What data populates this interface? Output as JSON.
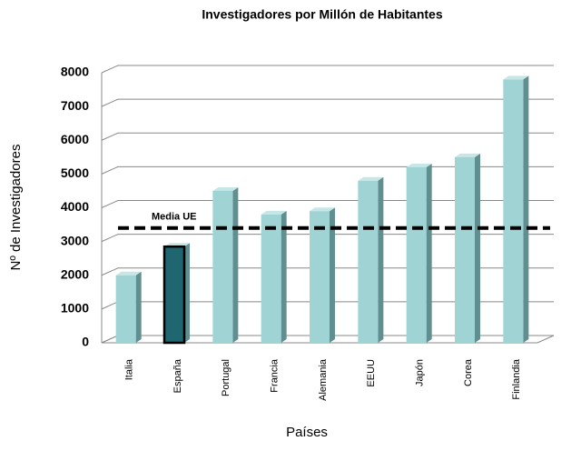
{
  "chart_data": {
    "type": "bar3d",
    "title": "Investigadores por Millón de Habitantes",
    "y_label": "Nº de Investigadores",
    "x_label": "Países",
    "categories": [
      "Italia",
      "España",
      "Portugal",
      "Francia",
      "Alemania",
      "EEUU",
      "Japón",
      "Corea",
      "Finlandia"
    ],
    "values": [
      2000,
      2850,
      4500,
      3800,
      3900,
      4800,
      5200,
      5500,
      7800
    ],
    "colors": [
      "#9fd3d4",
      "#1f6670",
      "#9fd3d4",
      "#9fd3d4",
      "#9fd3d4",
      "#9fd3d4",
      "#9fd3d4",
      "#9fd3d4",
      "#9fd3d4"
    ],
    "reference_line": {
      "label": "Media UE",
      "value": 3400
    },
    "ylim": [
      0,
      8000
    ],
    "yticks": [
      0,
      1000,
      2000,
      3000,
      4000,
      5000,
      6000,
      7000,
      8000
    ],
    "grid": true
  }
}
